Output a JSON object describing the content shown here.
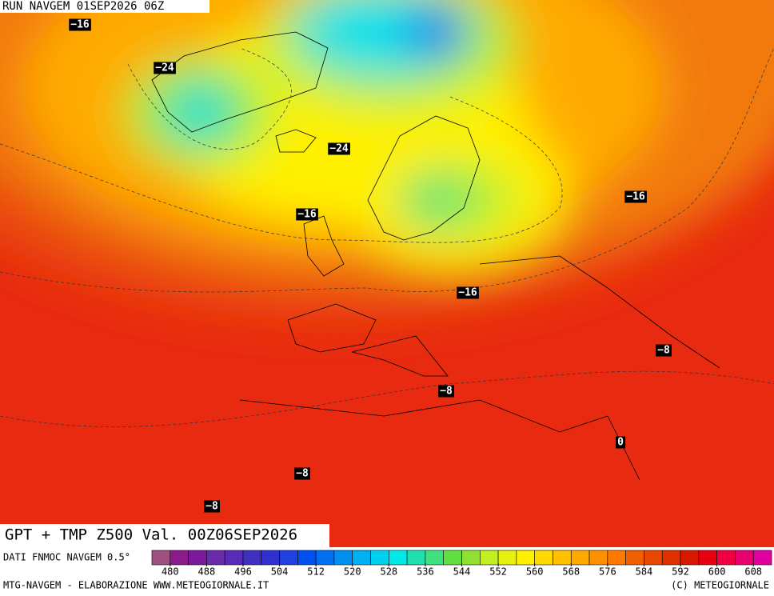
{
  "header": {
    "run": "RUN NAVGEM 01SEP2026 06Z"
  },
  "map": {
    "contour_labels": [
      "−16",
      "−24",
      "−24",
      "−16",
      "−16",
      "−16",
      "−8",
      "−8",
      "0",
      "−8",
      "−8"
    ]
  },
  "title": "GPT + TMP Z500 Val. 00Z06SEP2026",
  "legend": {
    "source": "DATI FNMOC NAVGEM 0.5°",
    "range": [
      476,
      612
    ],
    "colors": [
      "#a05080",
      "#8b1a8b",
      "#7a1a9a",
      "#6a2aaa",
      "#5a2ab8",
      "#4030c0",
      "#3030d0",
      "#2040e0",
      "#0050f0",
      "#0070f0",
      "#0090f0",
      "#00b0f0",
      "#00d0f0",
      "#00e8e8",
      "#20e0b0",
      "#40e080",
      "#60e040",
      "#90e030",
      "#c0f020",
      "#e8f010",
      "#fff000",
      "#ffd800",
      "#ffc000",
      "#ffa800",
      "#ff9000",
      "#ff7800",
      "#f06000",
      "#e84800",
      "#e03000",
      "#d81800",
      "#e80010",
      "#f00040",
      "#e80070",
      "#e000a0"
    ],
    "ticks": [
      480,
      488,
      496,
      504,
      512,
      520,
      528,
      536,
      544,
      552,
      560,
      568,
      576,
      584,
      592,
      600,
      608
    ]
  },
  "footer": {
    "left": "MTG-NAVGEM - ELABORAZIONE WWW.METEOGIORNALE.IT",
    "right": "(C) METEOGIORNALE"
  }
}
